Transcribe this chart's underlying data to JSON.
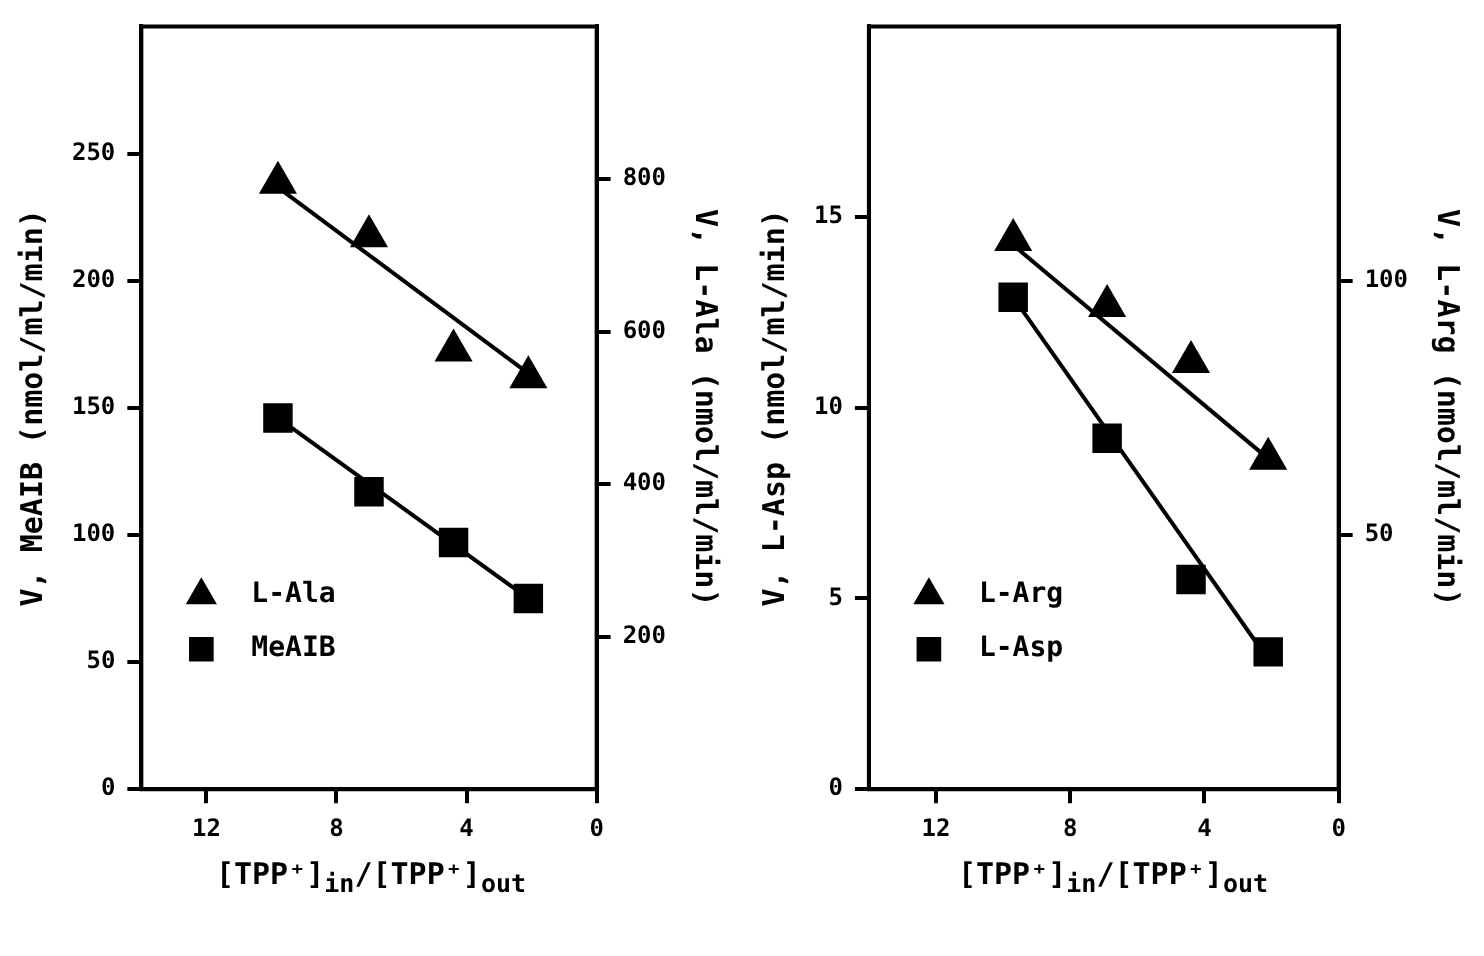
{
  "chart_data": [
    {
      "type": "scatter",
      "xlabel": "[TPP⁺]$_{in}$/[TPP⁺]$_{out}$",
      "ylabel": "V, MeAIB (nmol/ml/min)",
      "y2label": "V, L-Ala (nmol/ml/min)",
      "xlim": [
        14,
        0
      ],
      "xticks": [
        12,
        8,
        4,
        0
      ],
      "ylim": [
        0,
        300
      ],
      "yticks": [
        0,
        50,
        100,
        150,
        200,
        250
      ],
      "y2lim": [
        0,
        1000
      ],
      "y2ticks": [
        200,
        400,
        600,
        800
      ],
      "grid": false,
      "legend": "bottom left",
      "series": [
        {
          "name": "L-Ala",
          "color": "#000000",
          "marker": "triangle",
          "axis": "y2",
          "x": [
            9.8,
            7.0,
            4.4,
            2.1
          ],
          "values": [
            795,
            725,
            575,
            540
          ]
        },
        {
          "name": "MeAIB",
          "color": "#000000",
          "marker": "square",
          "x": [
            9.8,
            7.0,
            4.4,
            2.1
          ],
          "values": [
            146,
            117,
            97,
            75
          ]
        },
        {
          "type": "line",
          "color": "#000000",
          "marker": "none",
          "axis": "y2",
          "x": [
            9.8,
            2.1
          ],
          "values": [
            789,
            545
          ]
        },
        {
          "type": "line",
          "color": "#000000",
          "marker": "none",
          "x": [
            9.8,
            2.1
          ],
          "values": [
            146,
            75
          ]
        }
      ]
    },
    {
      "type": "scatter",
      "xlabel": "[TPP⁺]$_{in}$/[TPP⁺]$_{out}$",
      "ylabel": "V, L-Asp (nmol/ml/min)",
      "y2label": "V, L-Arg (nmol/ml/min)",
      "xlim": [
        14,
        0
      ],
      "xticks": [
        12,
        8,
        4,
        0
      ],
      "ylim": [
        0,
        20
      ],
      "yticks": [
        0,
        5,
        10,
        15
      ],
      "y2lim": [
        0,
        150
      ],
      "y2ticks": [
        50,
        100
      ],
      "grid": false,
      "legend": "bottom left",
      "series": [
        {
          "name": "L-Arg",
          "color": "#000000",
          "marker": "triangle",
          "axis": "y2",
          "x": [
            9.7,
            6.9,
            4.4,
            2.1
          ],
          "values": [
            108,
            95,
            84,
            65
          ]
        },
        {
          "name": "L-Asp",
          "color": "#000000",
          "marker": "square",
          "x": [
            9.7,
            6.9,
            4.4,
            2.1
          ],
          "values": [
            12.9,
            9.2,
            5.5,
            3.6
          ]
        },
        {
          "type": "line",
          "color": "#000000",
          "marker": "none",
          "axis": "y2",
          "x": [
            9.7,
            2.1
          ],
          "values": [
            107,
            65
          ]
        },
        {
          "type": "line",
          "color": "#000000",
          "marker": "none",
          "x": [
            9.7,
            2.1
          ],
          "values": [
            12.9,
            3.4
          ]
        }
      ]
    }
  ]
}
